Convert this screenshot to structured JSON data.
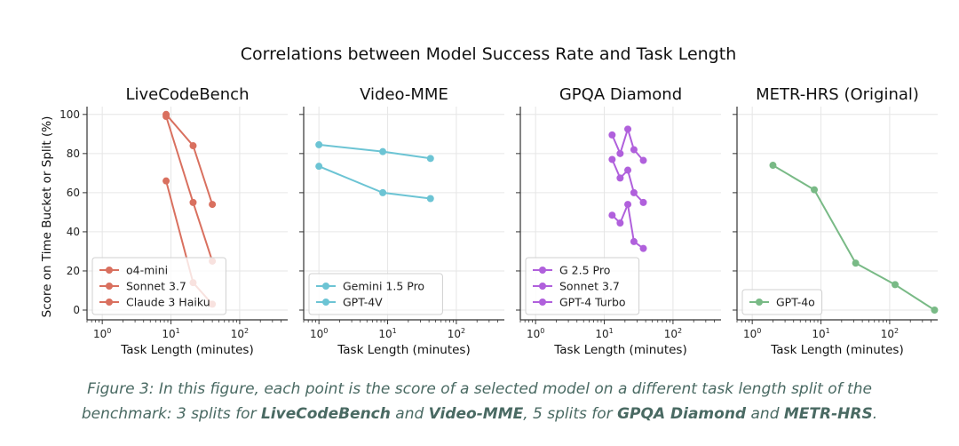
{
  "figure": {
    "suptitle": "Correlations between Model Success Rate and Task Length",
    "ylabel": "Score on Time Bucket or Split (%)",
    "xlabel": "Task Length (minutes)"
  },
  "caption": {
    "prefix": "Figure 3: In this figure, each point is the score of a selected model on a different task length split of the benchmark: 3 splits for ",
    "b1": "LiveCodeBench",
    "t1": " and ",
    "b2": "Video-MME",
    "t2": ", 5 splits for ",
    "b3": "GPQA Diamond",
    "t3": " and ",
    "b4": "METR-HRS",
    "suffix": "."
  },
  "chart_data": [
    {
      "type": "line",
      "title": "LiveCodeBench",
      "xlabel": "Task Length (minutes)",
      "ylabel": "Score on Time Bucket or Split (%)",
      "xscale": "log",
      "xlim": [
        0.6,
        500
      ],
      "ylim": [
        -5,
        104
      ],
      "xticks": [
        {
          "v": 1,
          "b": "10",
          "e": "0"
        },
        {
          "v": 10,
          "b": "10",
          "e": "1"
        },
        {
          "v": 100,
          "b": "10",
          "e": "2"
        }
      ],
      "yticks": [
        0,
        20,
        40,
        60,
        80,
        100
      ],
      "grid": true,
      "legend": "lower-left",
      "series": [
        {
          "name": "o4-mini",
          "color": "#d9705f",
          "x": [
            8.5,
            21,
            40
          ],
          "y": [
            100,
            84,
            54
          ]
        },
        {
          "name": "Sonnet 3.7",
          "color": "#d9705f",
          "x": [
            8.5,
            21,
            40
          ],
          "y": [
            99,
            55,
            25
          ]
        },
        {
          "name": "Claude 3 Haiku",
          "color": "#d9705f",
          "x": [
            8.5,
            21,
            40
          ],
          "y": [
            66,
            14,
            3
          ]
        }
      ]
    },
    {
      "type": "line",
      "title": "Video-MME",
      "xlabel": "Task Length (minutes)",
      "xscale": "log",
      "xlim": [
        0.6,
        500
      ],
      "ylim": [
        -5,
        104
      ],
      "xticks": [
        {
          "v": 1,
          "b": "10",
          "e": "0"
        },
        {
          "v": 10,
          "b": "10",
          "e": "1"
        },
        {
          "v": 100,
          "b": "10",
          "e": "2"
        }
      ],
      "yticks": [
        0,
        20,
        40,
        60,
        80,
        100
      ],
      "grid": true,
      "legend": "lower-left",
      "series": [
        {
          "name": "Gemini 1.5 Pro",
          "color": "#6cc4d4",
          "x": [
            1,
            8.5,
            42
          ],
          "y": [
            84.5,
            81,
            77.5
          ]
        },
        {
          "name": "GPT-4V",
          "color": "#6cc4d4",
          "x": [
            1,
            8.5,
            42
          ],
          "y": [
            73.5,
            60,
            57
          ]
        }
      ]
    },
    {
      "type": "line",
      "title": "GPQA Diamond",
      "xlabel": "Task Length (minutes)",
      "xscale": "log",
      "xlim": [
        0.6,
        500
      ],
      "ylim": [
        -5,
        104
      ],
      "xticks": [
        {
          "v": 1,
          "b": "10",
          "e": "0"
        },
        {
          "v": 10,
          "b": "10",
          "e": "1"
        },
        {
          "v": 100,
          "b": "10",
          "e": "2"
        }
      ],
      "yticks": [
        0,
        20,
        40,
        60,
        80,
        100
      ],
      "grid": true,
      "legend": "lower-left",
      "series": [
        {
          "name": "G 2.5 Pro",
          "color": "#b060dc",
          "x": [
            13,
            17,
            22,
            27,
            37
          ],
          "y": [
            89.5,
            80,
            92.5,
            82,
            76.5
          ]
        },
        {
          "name": "Sonnet 3.7",
          "color": "#b060dc",
          "x": [
            13,
            17,
            22,
            27,
            37
          ],
          "y": [
            77,
            67.5,
            71.5,
            60,
            55
          ]
        },
        {
          "name": "GPT-4 Turbo",
          "color": "#b060dc",
          "x": [
            13,
            17,
            22,
            27,
            37
          ],
          "y": [
            48.5,
            44.5,
            54,
            35,
            31.5
          ]
        }
      ]
    },
    {
      "type": "line",
      "title": "METR-HRS (Original)",
      "xlabel": "Task Length (minutes)",
      "xscale": "log",
      "xlim": [
        0.6,
        500
      ],
      "ylim": [
        -5,
        104
      ],
      "xticks": [
        {
          "v": 1,
          "b": "10",
          "e": "0"
        },
        {
          "v": 10,
          "b": "10",
          "e": "1"
        },
        {
          "v": 100,
          "b": "10",
          "e": "2"
        }
      ],
      "yticks": [
        0,
        20,
        40,
        60,
        80,
        100
      ],
      "grid": true,
      "legend": "lower-left",
      "series": [
        {
          "name": "GPT-4o",
          "color": "#79ba86",
          "x": [
            2,
            8,
            32,
            120,
            450
          ],
          "y": [
            74,
            61.5,
            24,
            13,
            0
          ]
        }
      ]
    }
  ]
}
